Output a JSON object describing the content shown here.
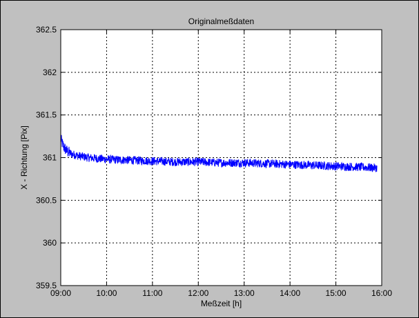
{
  "chart_data": {
    "type": "line",
    "title": "Originalmeßdaten",
    "xlabel": "Meßzeit [h]",
    "ylabel": "X - Richtung [Pix]",
    "xlim": [
      9,
      16
    ],
    "ylim": [
      359.5,
      362.5
    ],
    "x_ticks": [
      9,
      10,
      11,
      12,
      13,
      14,
      15,
      16
    ],
    "x_tick_labels": [
      "09:00",
      "10:00",
      "11:00",
      "12:00",
      "13:00",
      "14:00",
      "15:00",
      "16:00"
    ],
    "y_ticks": [
      359.5,
      360,
      360.5,
      361,
      361.5,
      362,
      362.5
    ],
    "y_tick_labels": [
      "359.5",
      "360",
      "360.5",
      "361",
      "361.5",
      "362",
      "362.5"
    ],
    "grid": true,
    "grid_style": "dotted",
    "colors": {
      "series": "#0000ff",
      "figure_bg": "#c0c0c0",
      "axes_bg": "#ffffff"
    },
    "series": [
      {
        "color": "#0000ff",
        "noise_band": 0.05,
        "x": [
          9.0,
          9.03,
          9.08,
          9.15,
          9.25,
          9.4,
          9.6,
          9.8,
          10.0,
          10.5,
          11.0,
          11.5,
          12.0,
          12.5,
          13.0,
          13.5,
          14.0,
          14.5,
          15.0,
          15.5,
          15.9
        ],
        "y": [
          361.22,
          361.17,
          361.11,
          361.07,
          361.04,
          361.02,
          361.0,
          360.99,
          360.98,
          360.97,
          360.96,
          360.95,
          360.95,
          360.94,
          360.94,
          360.93,
          360.92,
          360.91,
          360.9,
          360.89,
          360.88
        ]
      }
    ]
  }
}
